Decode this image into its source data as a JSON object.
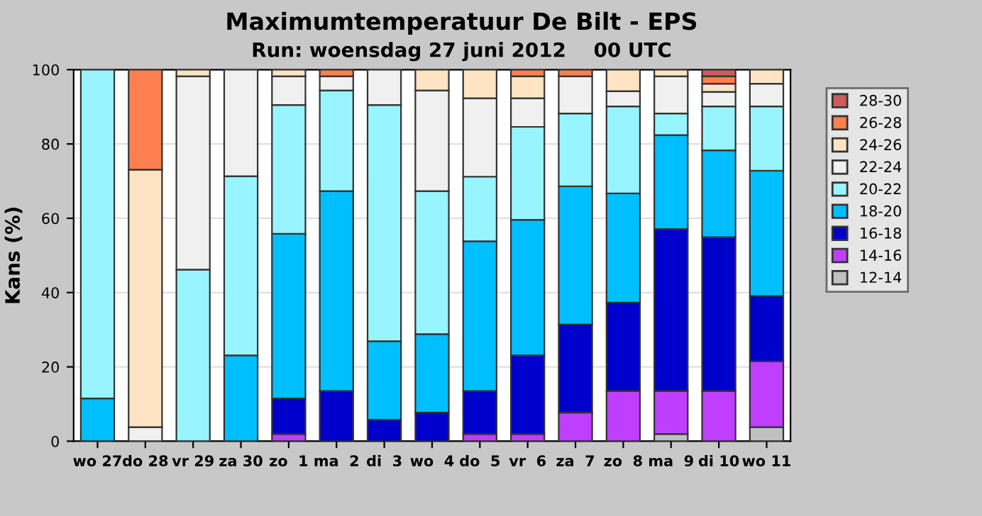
{
  "chart_data": {
    "type": "bar",
    "stacked": true,
    "title": "Maximumtemperatuur De Bilt - EPS",
    "subtitle": "Run: woensdag 27 juni 2012    00 UTC",
    "ylabel": "Kans (%)",
    "categories": [
      "wo 27",
      "do 28",
      "vr 29",
      "za 30",
      "zo  1",
      "ma  2",
      "di  3",
      "wo  4",
      "do  5",
      "vr  6",
      "za  7",
      "zo  8",
      "ma  9",
      "di 10",
      "wo 11"
    ],
    "series": [
      {
        "name": "12-14",
        "color": "#c0c0c0",
        "values": [
          0,
          0,
          0,
          0,
          0,
          0,
          0,
          0,
          0,
          0,
          0,
          0,
          1.9,
          0,
          3.8
        ]
      },
      {
        "name": "14-16",
        "color": "#bf3eff",
        "values": [
          0,
          0,
          0,
          0,
          1.9,
          0,
          0,
          0,
          1.9,
          1.9,
          7.7,
          13.5,
          11.6,
          13.5,
          17.7
        ]
      },
      {
        "name": "16-18",
        "color": "#0000cd",
        "values": [
          0,
          0,
          0,
          0,
          9.6,
          13.5,
          5.8,
          7.7,
          11.6,
          21.2,
          23.7,
          23.8,
          43.6,
          41.4,
          17.6
        ]
      },
      {
        "name": "18-20",
        "color": "#00bfff",
        "values": [
          11.5,
          0,
          0,
          23.1,
          44.3,
          53.8,
          21.1,
          21.1,
          40.3,
          36.5,
          37.2,
          29.4,
          25.3,
          23.4,
          33.7
        ]
      },
      {
        "name": "20-22",
        "color": "#98f5ff",
        "values": [
          88.5,
          0,
          46.2,
          48.2,
          34.7,
          27.1,
          63.6,
          38.5,
          17.4,
          25.0,
          19.6,
          23.4,
          5.8,
          11.8,
          17.3
        ]
      },
      {
        "name": "22-24",
        "color": "#f0f0f0",
        "values": [
          0,
          3.8,
          52.0,
          28.7,
          7.7,
          3.8,
          9.5,
          27.1,
          21.1,
          7.7,
          10.0,
          4.1,
          10.0,
          3.9,
          6.1
        ]
      },
      {
        "name": "24-26",
        "color": "#ffe4c4",
        "values": [
          0,
          69.3,
          1.8,
          0,
          1.8,
          0,
          0,
          5.6,
          7.7,
          5.9,
          0,
          5.8,
          1.8,
          2.2,
          3.8
        ]
      },
      {
        "name": "26-28",
        "color": "#ff7f50",
        "values": [
          0,
          26.9,
          0,
          0,
          0,
          1.8,
          0,
          0,
          0,
          1.8,
          1.8,
          0,
          0,
          2.0,
          0
        ]
      },
      {
        "name": "28-30",
        "color": "#cd5c5c",
        "values": [
          0,
          0,
          0,
          0,
          0,
          0,
          0,
          0,
          0,
          0,
          0,
          0,
          0,
          1.8,
          0
        ]
      }
    ],
    "ylim": [
      0,
      100
    ],
    "yticks": [
      0,
      20,
      40,
      60,
      80,
      100
    ],
    "grid": "y",
    "legend": "right"
  }
}
